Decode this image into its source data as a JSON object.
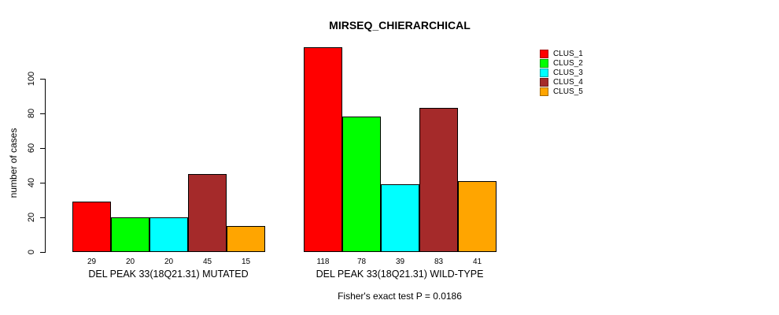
{
  "title": "MIRSEQ_CHIERARCHICAL",
  "y_axis": {
    "label": "number of cases",
    "ticks": [
      0,
      20,
      40,
      60,
      80,
      100
    ]
  },
  "footnote": "Fisher's exact test P = 0.0186",
  "legend": {
    "items": [
      {
        "label": "CLUS_1",
        "color": "#FF0000"
      },
      {
        "label": "CLUS_2",
        "color": "#00FF00"
      },
      {
        "label": "CLUS_3",
        "color": "#00FFFF"
      },
      {
        "label": "CLUS_4",
        "color": "#A52A2A"
      },
      {
        "label": "CLUS_5",
        "color": "#FFA500"
      }
    ]
  },
  "chart_data": {
    "type": "bar",
    "title": "MIRSEQ_CHIERARCHICAL",
    "ylabel": "number of cases",
    "ylim": [
      0,
      100
    ],
    "yticks": [
      0,
      20,
      40,
      60,
      80,
      100
    ],
    "grid": false,
    "legend_position": "top-right",
    "bar_value_labels": true,
    "series": [
      {
        "name": "CLUS_1",
        "color": "#FF0000",
        "values": [
          29,
          118
        ]
      },
      {
        "name": "CLUS_2",
        "color": "#00FF00",
        "values": [
          20,
          78
        ]
      },
      {
        "name": "CLUS_3",
        "color": "#00FFFF",
        "values": [
          20,
          39
        ]
      },
      {
        "name": "CLUS_4",
        "color": "#A52A2A",
        "values": [
          45,
          83
        ]
      },
      {
        "name": "CLUS_5",
        "color": "#FFA500",
        "values": [
          15,
          41
        ]
      }
    ],
    "groups": [
      {
        "label": "DEL PEAK 33(18Q21.31) MUTATED",
        "values": [
          29,
          20,
          20,
          45,
          15
        ]
      },
      {
        "label": "DEL PEAK 33(18Q21.31) WILD-TYPE",
        "values": [
          118,
          78,
          39,
          83,
          41
        ]
      }
    ],
    "annotation": "Fisher's exact test P = 0.0186"
  }
}
